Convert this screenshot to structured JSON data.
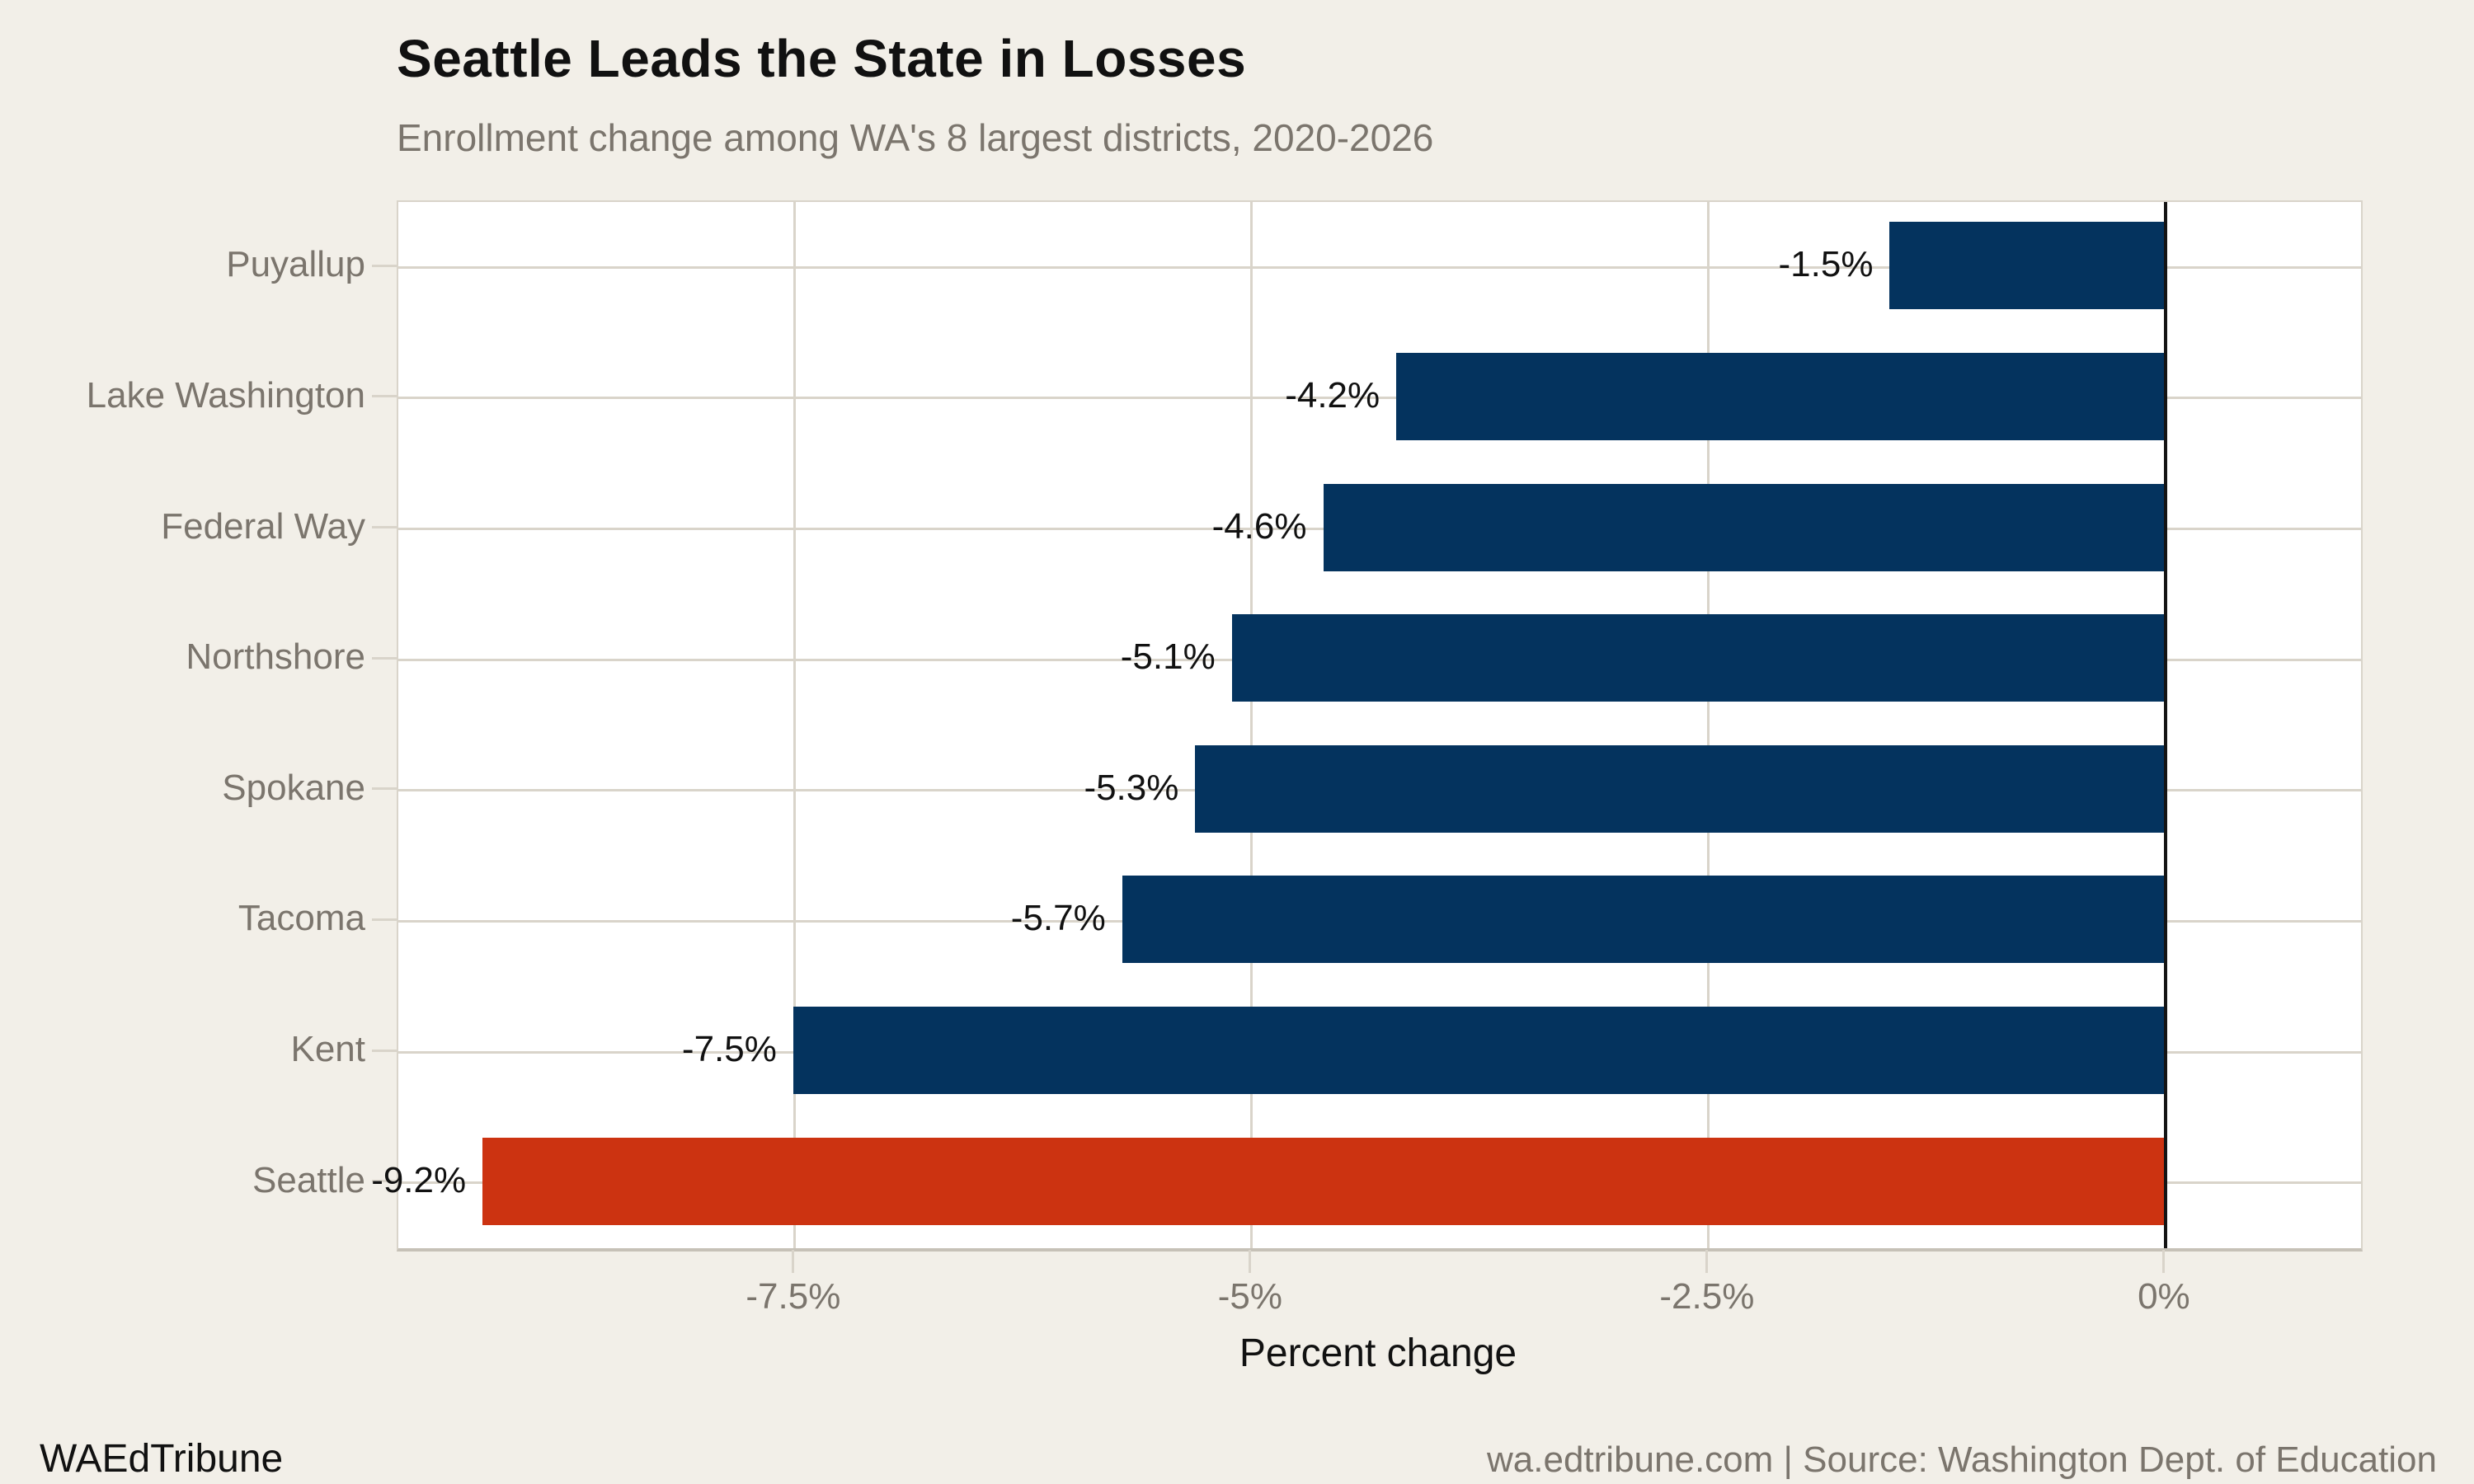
{
  "header": {
    "title": "Seattle Leads the State in Losses",
    "subtitle": "Enrollment change among WA's 8 largest districts, 2020-2026"
  },
  "footer": {
    "brand": "WAEdTribune",
    "source": "wa.edtribune.com | Source: Washington Dept. of Education"
  },
  "chart_data": {
    "type": "bar",
    "orientation": "horizontal",
    "title": "Seattle Leads the State in Losses",
    "subtitle": "Enrollment change among WA's 8 largest districts, 2020-2026",
    "categories": [
      "Puyallup",
      "Lake Washington",
      "Federal Way",
      "Northshore",
      "Spokane",
      "Tacoma",
      "Kent",
      "Seattle"
    ],
    "values": [
      -1.5,
      -4.2,
      -4.6,
      -5.1,
      -5.3,
      -5.7,
      -7.5,
      -9.2
    ],
    "value_labels": [
      "-1.5%",
      "-4.2%",
      "-4.6%",
      "-5.1%",
      "-5.3%",
      "-5.7%",
      "-7.5%",
      "-9.2%"
    ],
    "highlight_category": "Seattle",
    "xlabel": "Percent change",
    "ylabel": "",
    "xlim": [
      -9.67,
      1.07
    ],
    "x_ticks": [
      {
        "value": -7.5,
        "label": "-7.5%"
      },
      {
        "value": -5.0,
        "label": "-5%"
      },
      {
        "value": -2.5,
        "label": "-2.5%"
      },
      {
        "value": 0.0,
        "label": "0%"
      }
    ],
    "grid": "on",
    "legend": "none",
    "colors": {
      "bar_default": "#04335e",
      "bar_highlight": "#cc3311",
      "background": "#f2efe8",
      "panel": "#ffffff",
      "gridline": "#d9d4ca",
      "zero_line": "#141414",
      "text_gray": "#7b756d",
      "text_black": "#111111"
    }
  }
}
